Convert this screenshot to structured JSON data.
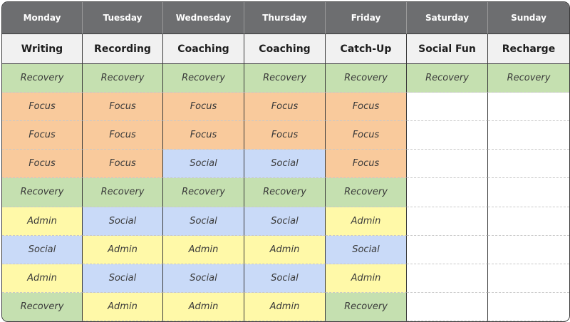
{
  "days": [
    "Monday",
    "Tuesday",
    "Wednesday",
    "Thursday",
    "Friday",
    "Saturday",
    "Sunday"
  ],
  "themes": [
    "Writing",
    "Recording",
    "Coaching",
    "Coaching",
    "Catch-Up",
    "Social Fun",
    "Recharge"
  ],
  "category_colors": {
    "Recovery": "#c5e0b0",
    "Focus": "#f9ca9c",
    "Social": "#c9daf8",
    "Admin": "#fff9a8",
    "header_bg": "#6d6e70",
    "theme_bg": "#f1f1f1"
  },
  "slots": [
    [
      "Recovery",
      "Recovery",
      "Recovery",
      "Recovery",
      "Recovery",
      "Recovery",
      "Recovery"
    ],
    [
      "Focus",
      "Focus",
      "Focus",
      "Focus",
      "Focus",
      "",
      ""
    ],
    [
      "Focus",
      "Focus",
      "Focus",
      "Focus",
      "Focus",
      "",
      ""
    ],
    [
      "Focus",
      "Focus",
      "Social",
      "Social",
      "Focus",
      "",
      ""
    ],
    [
      "Recovery",
      "Recovery",
      "Recovery",
      "Recovery",
      "Recovery",
      "",
      ""
    ],
    [
      "Admin",
      "Social",
      "Social",
      "Social",
      "Admin",
      "",
      ""
    ],
    [
      "Social",
      "Admin",
      "Admin",
      "Admin",
      "Social",
      "",
      ""
    ],
    [
      "Admin",
      "Social",
      "Social",
      "Social",
      "Admin",
      "",
      ""
    ],
    [
      "Recovery",
      "Admin",
      "Admin",
      "Admin",
      "Recovery",
      "",
      ""
    ]
  ]
}
